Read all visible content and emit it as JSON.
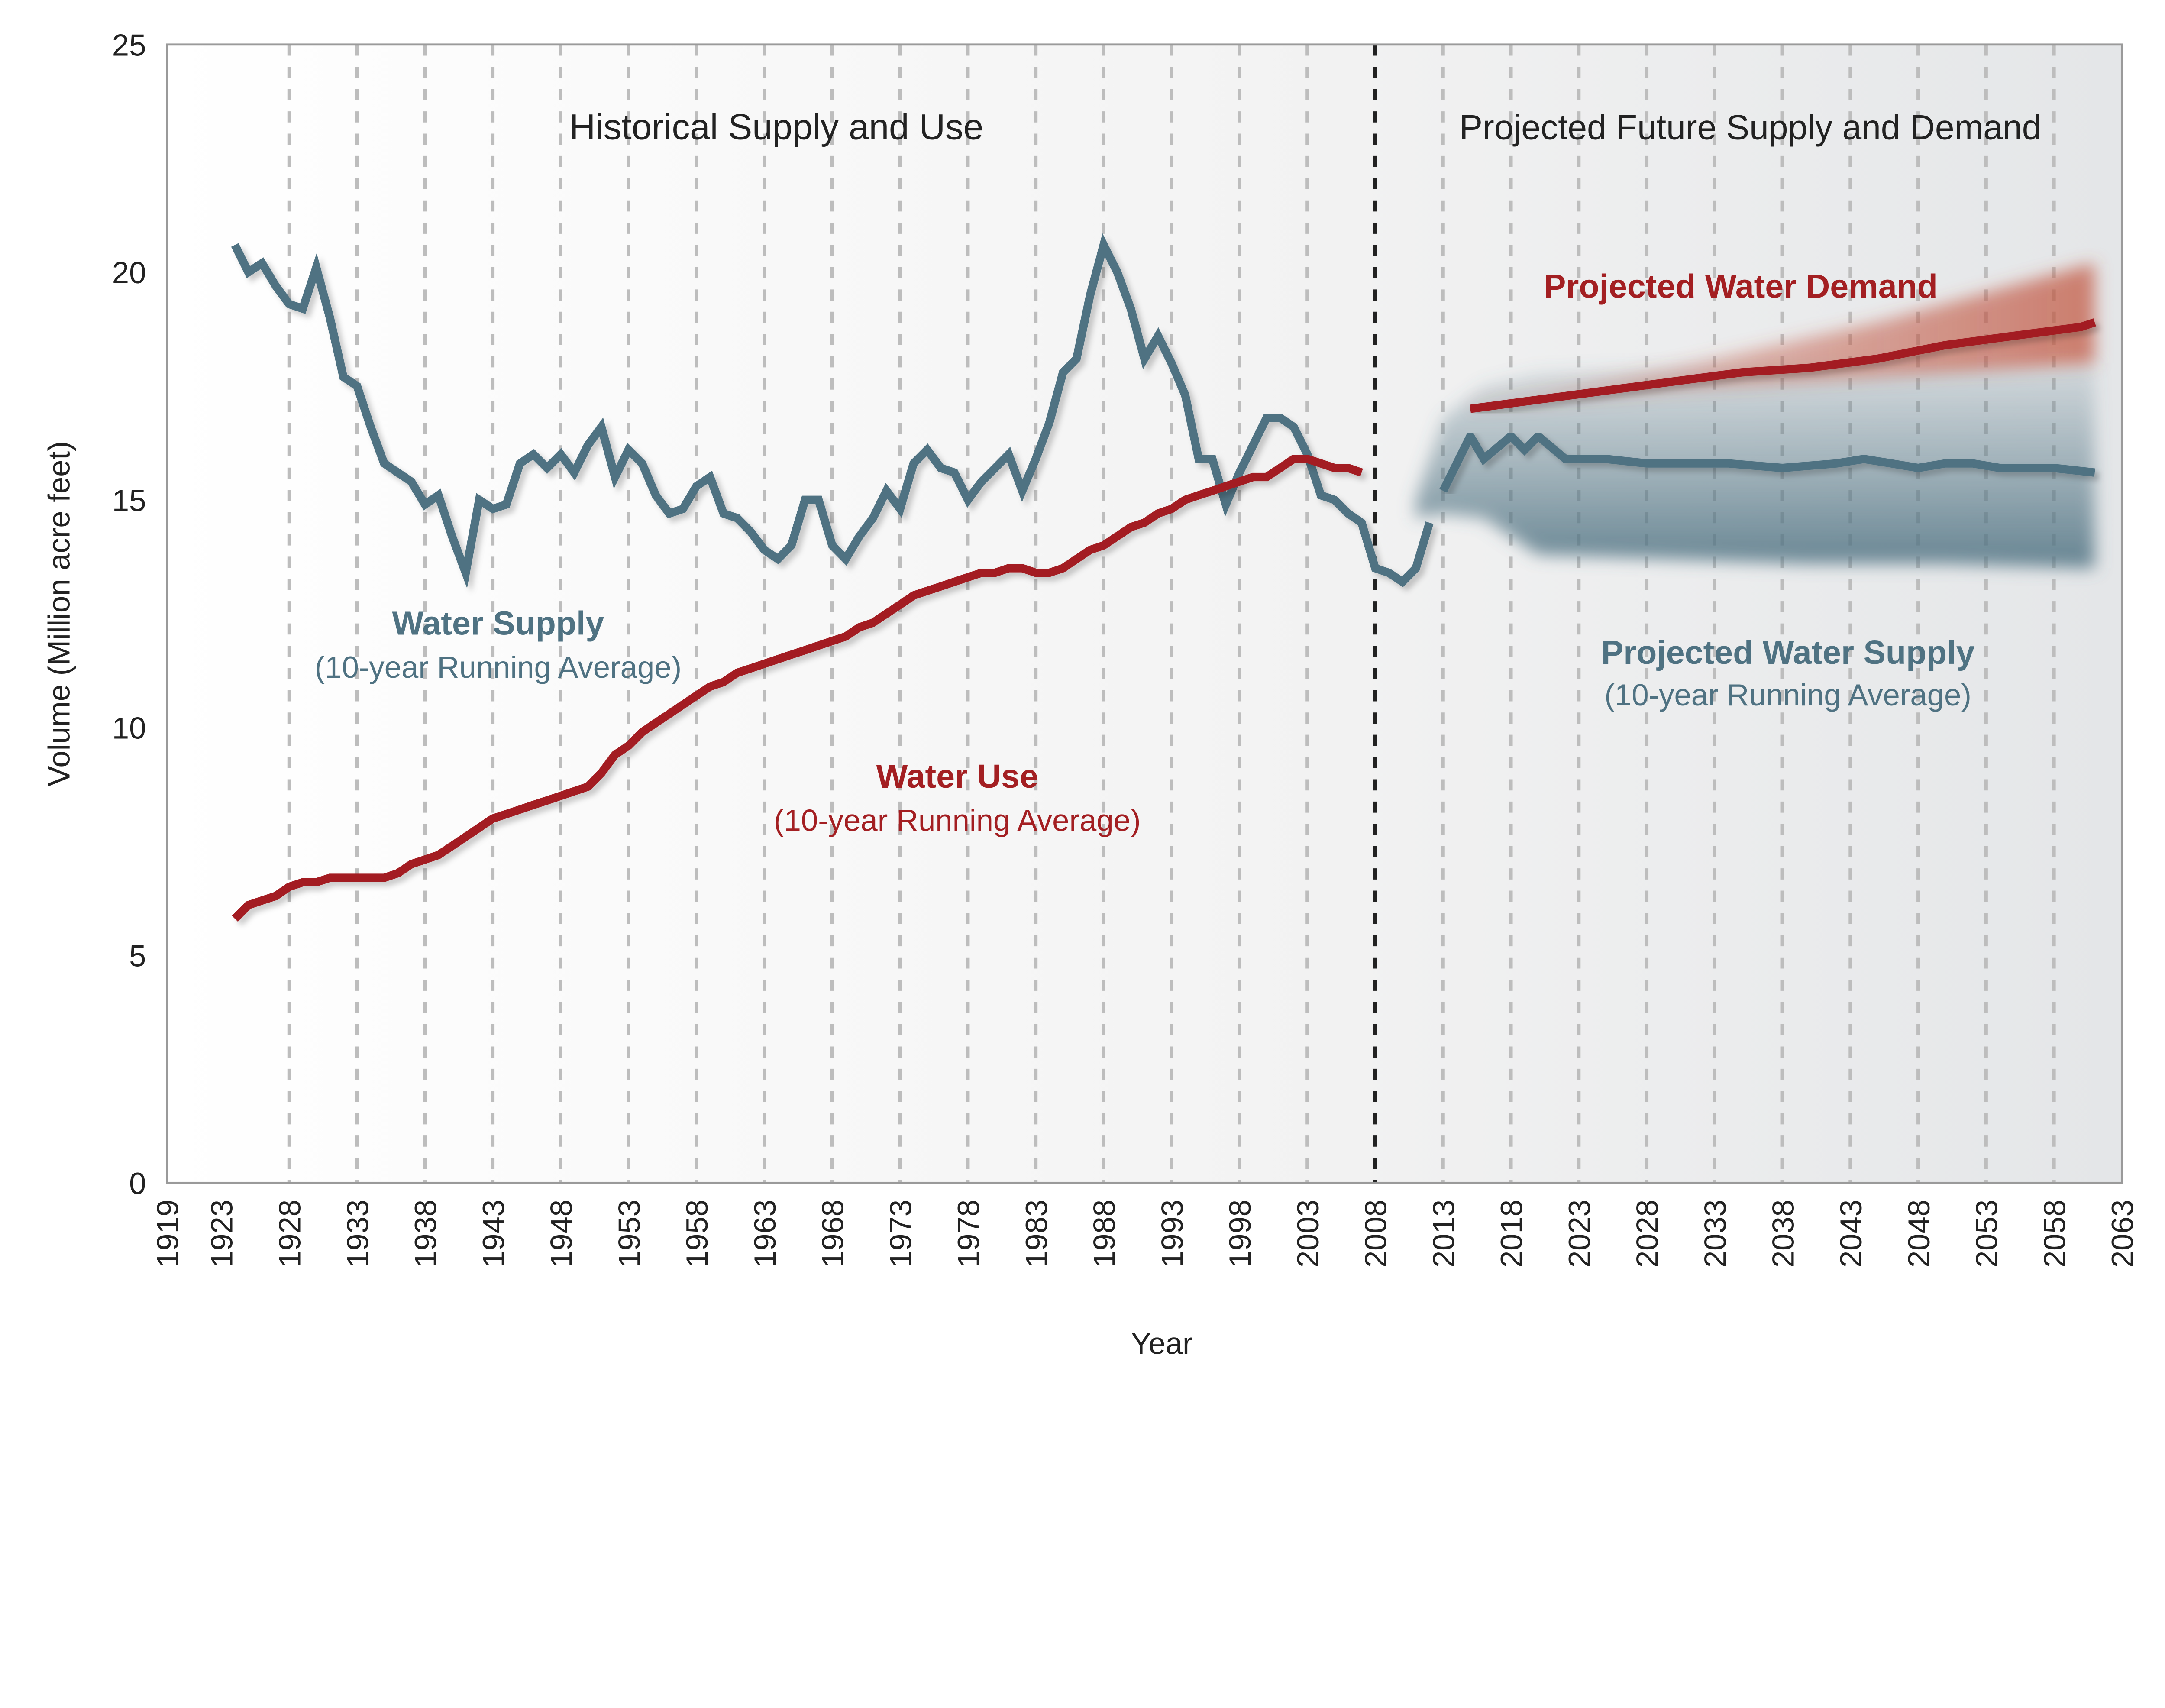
{
  "chart_data": {
    "type": "line",
    "xlabel": "Year",
    "ylabel": "Volume (Million acre feet)",
    "xlim": [
      1919,
      2063
    ],
    "ylim": [
      0,
      25
    ],
    "x_ticks": [
      1919,
      1923,
      1928,
      1933,
      1938,
      1943,
      1948,
      1953,
      1958,
      1963,
      1968,
      1973,
      1978,
      1983,
      1988,
      1993,
      1998,
      2003,
      2008,
      2013,
      2018,
      2023,
      2028,
      2033,
      2038,
      2043,
      2048,
      2053,
      2058,
      2063
    ],
    "y_ticks": [
      0,
      5,
      10,
      15,
      20,
      25
    ],
    "grid": "vertical dashed",
    "divider_year": 2008,
    "colors": {
      "supply": "#4f7282",
      "use": "#a31f22",
      "divider": "#222222",
      "grid": "#bdbdbd"
    },
    "section_titles": {
      "historical": "Historical Supply and Use",
      "projected": "Projected Future Supply and Demand"
    },
    "labels": {
      "supply_title": "Water Supply",
      "supply_sub": "(10-year Running Average)",
      "use_title": "Water Use",
      "use_sub": "(10-year Running Average)",
      "proj_demand_title": "Projected Water Demand",
      "proj_supply_title": "Projected Water Supply",
      "proj_supply_sub": "(10-year Running Average)"
    },
    "series": [
      {
        "name": "Water Supply (10-year Running Average)",
        "color": "#4f7282",
        "x": [
          1924,
          1925,
          1926,
          1927,
          1928,
          1929,
          1930,
          1931,
          1932,
          1933,
          1934,
          1935,
          1936,
          1937,
          1938,
          1939,
          1940,
          1941,
          1942,
          1943,
          1944,
          1945,
          1946,
          1947,
          1948,
          1949,
          1950,
          1951,
          1952,
          1953,
          1954,
          1955,
          1956,
          1957,
          1958,
          1959,
          1960,
          1961,
          1962,
          1963,
          1964,
          1965,
          1966,
          1967,
          1968,
          1969,
          1970,
          1971,
          1972,
          1973,
          1974,
          1975,
          1976,
          1977,
          1978,
          1979,
          1980,
          1981,
          1982,
          1983,
          1984,
          1985,
          1986,
          1987,
          1988,
          1989,
          1990,
          1991,
          1992,
          1993,
          1994,
          1995,
          1996,
          1997,
          1998,
          1999,
          2000,
          2001,
          2002,
          2003,
          2004,
          2005,
          2006,
          2007,
          2008,
          2009,
          2010,
          2011,
          2012
        ],
        "y": [
          20.6,
          20.0,
          20.2,
          19.7,
          19.3,
          19.2,
          20.1,
          19.0,
          17.7,
          17.5,
          16.6,
          15.8,
          15.6,
          15.4,
          14.9,
          15.1,
          14.2,
          13.4,
          15.0,
          14.8,
          14.9,
          15.8,
          16.0,
          15.7,
          16.0,
          15.6,
          16.2,
          16.6,
          15.5,
          16.1,
          15.8,
          15.1,
          14.7,
          14.8,
          15.3,
          15.5,
          14.7,
          14.6,
          14.3,
          13.9,
          13.7,
          14.0,
          15.0,
          15.0,
          14.0,
          13.7,
          14.2,
          14.6,
          15.2,
          14.8,
          15.8,
          16.1,
          15.7,
          15.6,
          15.0,
          15.4,
          15.7,
          16.0,
          15.2,
          15.9,
          16.7,
          17.8,
          18.1,
          19.5,
          20.6,
          20.0,
          19.2,
          18.1,
          18.6,
          18.0,
          17.3,
          15.9,
          15.9,
          14.9,
          15.6,
          16.2,
          16.8,
          16.8,
          16.6,
          16.0,
          15.1,
          15.0,
          14.7,
          14.5,
          13.5,
          13.4,
          13.2,
          13.5,
          14.5
        ]
      },
      {
        "name": "Water Use (10-year Running Average)",
        "color": "#a31f22",
        "x": [
          1924,
          1925,
          1926,
          1927,
          1928,
          1929,
          1930,
          1931,
          1932,
          1933,
          1934,
          1935,
          1936,
          1937,
          1938,
          1939,
          1940,
          1941,
          1942,
          1943,
          1944,
          1945,
          1946,
          1947,
          1948,
          1949,
          1950,
          1951,
          1952,
          1953,
          1954,
          1955,
          1956,
          1957,
          1958,
          1959,
          1960,
          1961,
          1962,
          1963,
          1964,
          1965,
          1966,
          1967,
          1968,
          1969,
          1970,
          1971,
          1972,
          1973,
          1974,
          1975,
          1976,
          1977,
          1978,
          1979,
          1980,
          1981,
          1982,
          1983,
          1984,
          1985,
          1986,
          1987,
          1988,
          1989,
          1990,
          1991,
          1992,
          1993,
          1994,
          1995,
          1996,
          1997,
          1998,
          1999,
          2000,
          2001,
          2002,
          2003,
          2004,
          2005,
          2006,
          2007
        ],
        "y": [
          5.8,
          6.1,
          6.2,
          6.3,
          6.5,
          6.6,
          6.6,
          6.7,
          6.7,
          6.7,
          6.7,
          6.7,
          6.8,
          7.0,
          7.1,
          7.2,
          7.4,
          7.6,
          7.8,
          8.0,
          8.1,
          8.2,
          8.3,
          8.4,
          8.5,
          8.6,
          8.7,
          9.0,
          9.4,
          9.6,
          9.9,
          10.1,
          10.3,
          10.5,
          10.7,
          10.9,
          11.0,
          11.2,
          11.3,
          11.4,
          11.5,
          11.6,
          11.7,
          11.8,
          11.9,
          12.0,
          12.2,
          12.3,
          12.5,
          12.7,
          12.9,
          13.0,
          13.1,
          13.2,
          13.3,
          13.4,
          13.4,
          13.5,
          13.5,
          13.4,
          13.4,
          13.5,
          13.7,
          13.9,
          14.0,
          14.2,
          14.4,
          14.5,
          14.7,
          14.8,
          15.0,
          15.1,
          15.2,
          15.3,
          15.4,
          15.5,
          15.5,
          15.7,
          15.9,
          15.9,
          15.8,
          15.7,
          15.7,
          15.6
        ]
      },
      {
        "name": "Projected Water Supply (10-year Running Average)",
        "color": "#4f7282",
        "x": [
          2013,
          2015,
          2016,
          2018,
          2019,
          2020,
          2022,
          2025,
          2028,
          2031,
          2034,
          2038,
          2042,
          2044,
          2046,
          2048,
          2050,
          2052,
          2054,
          2058,
          2061
        ],
        "y": [
          15.2,
          16.4,
          15.9,
          16.4,
          16.1,
          16.4,
          15.9,
          15.9,
          15.8,
          15.8,
          15.8,
          15.7,
          15.8,
          15.9,
          15.8,
          15.7,
          15.8,
          15.8,
          15.7,
          15.7,
          15.6
        ],
        "band": {
          "x": [
            2011,
            2013,
            2016,
            2020,
            2030,
            2040,
            2050,
            2061
          ],
          "low": [
            14.6,
            14.7,
            14.6,
            13.8,
            13.7,
            13.6,
            13.6,
            13.5
          ],
          "high": [
            15.0,
            16.8,
            17.5,
            17.8,
            17.9,
            17.9,
            18.0,
            18.0
          ]
        }
      },
      {
        "name": "Projected Water Demand",
        "color": "#a31f22",
        "x": [
          2015,
          2020,
          2025,
          2030,
          2035,
          2040,
          2045,
          2050,
          2055,
          2060,
          2061
        ],
        "y": [
          17.0,
          17.2,
          17.4,
          17.6,
          17.8,
          17.9,
          18.1,
          18.4,
          18.6,
          18.8,
          18.9
        ],
        "band": {
          "x": [
            2015,
            2030,
            2045,
            2061
          ],
          "low": [
            17.0,
            17.4,
            17.7,
            18.0
          ],
          "high": [
            17.1,
            17.9,
            18.9,
            20.2
          ]
        }
      }
    ]
  }
}
